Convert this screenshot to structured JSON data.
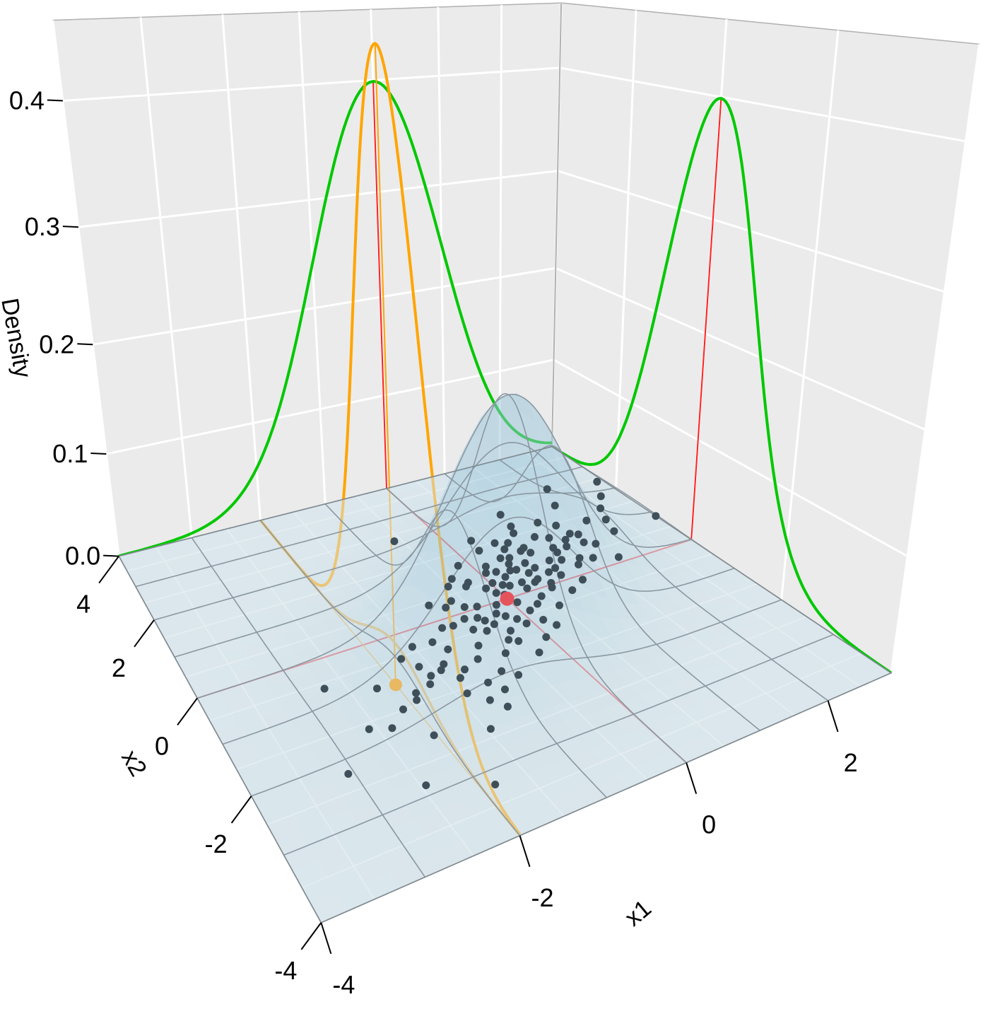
{
  "chart_data": {
    "type": "surface3d",
    "title": "",
    "x1_axis": {
      "label": "x1",
      "range": [
        -4,
        3
      ],
      "ticks": [
        -4,
        -2,
        0,
        2
      ],
      "tick_labels": [
        "-4",
        "-2",
        "0",
        "2"
      ]
    },
    "x2_axis": {
      "label": "x2",
      "range": [
        -4,
        4
      ],
      "ticks": [
        -4,
        -2,
        0,
        2,
        4
      ],
      "tick_labels": [
        "-4",
        "-2",
        "0",
        "2",
        "4"
      ]
    },
    "z_axis": {
      "label": "Density",
      "range": [
        0,
        0.46
      ],
      "ticks": [
        0,
        0.1,
        0.2,
        0.3,
        0.4
      ],
      "tick_labels": [
        "0.0",
        "0.1",
        "0.2",
        "0.3",
        "0.4"
      ]
    },
    "grid": true,
    "wall_grid": {
      "x1_step": 1,
      "x2_step": 2,
      "z_step": 0.1
    },
    "surface": {
      "mean": [
        0,
        0
      ],
      "sd": [
        1,
        1
      ],
      "rho": 0.5,
      "mesh_step": 1
    },
    "marginals": [
      {
        "variable": "x1",
        "wall_at_x2": 4,
        "mean": 0,
        "sd": 1
      },
      {
        "variable": "x2",
        "wall_at_x1": 3,
        "mean": 0,
        "sd": 1
      }
    ],
    "conditional": {
      "given_x1": -2,
      "mean": -1,
      "sd": 0.866
    },
    "mean_point": [
      0,
      0
    ],
    "conditional_point": [
      -2,
      -1
    ],
    "points": [
      [
        0.12,
        0.35
      ],
      [
        -0.54,
        -0.21
      ],
      [
        1.21,
        0.88
      ],
      [
        -1.35,
        -0.92
      ],
      [
        0.44,
        1.02
      ],
      [
        -0.08,
        -0.67
      ],
      [
        0.91,
        0.15
      ],
      [
        -0.77,
        0.24
      ],
      [
        1.63,
        1.12
      ],
      [
        -1.92,
        -1.41
      ],
      [
        0.27,
        -0.33
      ],
      [
        -0.31,
        0.58
      ],
      [
        0.66,
        0.71
      ],
      [
        -1.08,
        -1.55
      ],
      [
        2.05,
        1.34
      ],
      [
        -0.45,
        -0.88
      ],
      [
        0.03,
        0.47
      ],
      [
        1.37,
        0.42
      ],
      [
        -2.21,
        -0.95
      ],
      [
        0.58,
        1.46
      ],
      [
        -0.19,
        -0.06
      ],
      [
        0.83,
        -0.28
      ],
      [
        -0.62,
        -1.12
      ],
      [
        1.02,
        1.79
      ],
      [
        -1.51,
        -0.37
      ],
      [
        0.35,
        0.09
      ],
      [
        -0.93,
        0.41
      ],
      [
        1.78,
        0.65
      ],
      [
        -0.27,
        -1.33
      ],
      [
        0.71,
        0.52
      ],
      [
        -1.22,
        -1.87
      ],
      [
        0.16,
        0.92
      ],
      [
        2.44,
        1.57
      ],
      [
        -0.71,
        -0.43
      ],
      [
        0.49,
        -0.52
      ],
      [
        -1.66,
        -1.21
      ],
      [
        1.15,
        1.31
      ],
      [
        -0.05,
        0.21
      ],
      [
        0.94,
        0.36
      ],
      [
        -2.58,
        -1.62
      ],
      [
        0.22,
        -0.91
      ],
      [
        -0.38,
        0.87
      ],
      [
        1.48,
        0.99
      ],
      [
        -1.02,
        -0.18
      ],
      [
        0.61,
        1.22
      ],
      [
        -0.84,
        -1.43
      ],
      [
        0.07,
        -0.15
      ],
      [
        1.91,
        2.03
      ],
      [
        -1.43,
        -1.02
      ],
      [
        0.39,
        0.64
      ],
      [
        -0.56,
        0.12
      ],
      [
        1.26,
        0.27
      ],
      [
        -2.03,
        -2.11
      ],
      [
        0.78,
        1.05
      ],
      [
        -0.13,
        -0.51
      ],
      [
        0.52,
        0.18
      ],
      [
        -1.17,
        -0.66
      ],
      [
        1.59,
        1.45
      ],
      [
        -0.36,
        -0.97
      ],
      [
        0.29,
        1.38
      ],
      [
        -0.98,
        -1.78
      ],
      [
        2.21,
        0.83
      ],
      [
        -0.64,
        0.35
      ],
      [
        0.87,
        0.93
      ],
      [
        -1.73,
        -0.54
      ],
      [
        0.11,
        -0.42
      ],
      [
        -0.24,
        0.66
      ],
      [
        1.09,
        -0.12
      ],
      [
        -1.31,
        -1.29
      ],
      [
        0.46,
        0.81
      ],
      [
        -2.36,
        -1.74
      ],
      [
        0.64,
        -0.07
      ],
      [
        -0.49,
        -0.32
      ],
      [
        1.41,
        1.68
      ],
      [
        -0.82,
        -0.79
      ],
      [
        0.19,
        0.28
      ],
      [
        1.72,
        1.03
      ],
      [
        -1.11,
        -2.09
      ],
      [
        0.33,
        1.71
      ],
      [
        -0.03,
        -1.08
      ],
      [
        0.98,
        0.59
      ],
      [
        -1.58,
        -1.06
      ],
      [
        2.67,
        1.92
      ],
      [
        -0.42,
        0.04
      ],
      [
        0.57,
        0.44
      ],
      [
        -0.71,
        -1.61
      ],
      [
        1.19,
        0.73
      ],
      [
        -1.87,
        -1.28
      ],
      [
        0.08,
        0.76
      ],
      [
        0.74,
        1.36
      ],
      [
        -0.29,
        -0.25
      ],
      [
        1.53,
        0.32
      ],
      [
        -1.26,
        -0.41
      ],
      [
        0.41,
        -0.19
      ],
      [
        -0.58,
        -0.55
      ],
      [
        0.95,
        1.58
      ],
      [
        -2.12,
        -1.49
      ],
      [
        0.25,
        0.52
      ],
      [
        -0.88,
        -0.21
      ],
      [
        1.31,
        1.17
      ],
      [
        -3.05,
        -2.21
      ],
      [
        -2.72,
        -0.62
      ],
      [
        2.9,
        2.4
      ],
      [
        -0.15,
        1.15
      ],
      [
        1.84,
        0.14
      ],
      [
        -1.46,
        -2.35
      ],
      [
        0.69,
        0.04
      ],
      [
        -0.51,
        0.71
      ],
      [
        1.07,
        2.21
      ],
      [
        -0.96,
        -1.05
      ],
      [
        0.14,
        -0.71
      ],
      [
        2.31,
        1.21
      ],
      [
        -1.62,
        -0.81
      ],
      [
        0.55,
        0.96
      ],
      [
        -0.33,
        -0.71
      ],
      [
        0.81,
        0.31
      ],
      [
        -1.19,
        -1.16
      ],
      [
        1.66,
        0.78
      ],
      [
        0.02,
        0.11
      ],
      [
        -0.69,
        -0.14
      ],
      [
        0.37,
        0.27
      ],
      [
        1.13,
        0.51
      ],
      [
        -0.11,
        0.39
      ],
      [
        0.47,
        0.61
      ],
      [
        -0.22,
        -0.37
      ],
      [
        0.86,
        1.11
      ],
      [
        0.59,
        0.23
      ],
      [
        -0.43,
        -0.46
      ],
      [
        0.21,
        0.71
      ],
      [
        1.39,
        0.81
      ],
      [
        -1.38,
        -1.61
      ],
      [
        -2.45,
        -2.82
      ],
      [
        -1.85,
        -3.2
      ],
      [
        3.0,
        0.9
      ],
      [
        -0.6,
        2.3
      ],
      [
        2.1,
        2.6
      ]
    ],
    "colors": {
      "wall": "#ebebeb",
      "wall_grid": "#ffffff",
      "floor": "#dbe7ec",
      "surface": "#a8cfe0",
      "mesh": "#8a98a2",
      "marginal": "#00c800",
      "conditional": "#ffa500",
      "conditional_floor": "#e8b862",
      "mean_lines": "#ff2020",
      "floor_mean_lines": "#e5535d",
      "points": "#3f4f59",
      "mean_point": "#e5535d",
      "conditional_point": "#e8b862"
    }
  }
}
